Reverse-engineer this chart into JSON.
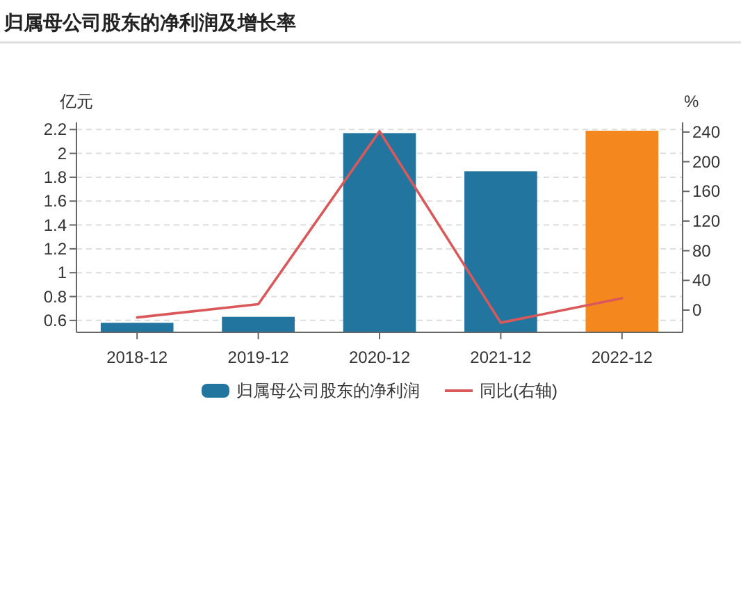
{
  "chart_data": {
    "type": "bar",
    "title": "归属母公司股东的净利润及增长率",
    "ylabel": "亿元",
    "y2label": "%",
    "categories": [
      "2018-12",
      "2019-12",
      "2020-12",
      "2021-12",
      "2022-12"
    ],
    "series": [
      {
        "name": "归属母公司股东的净利润",
        "color": "#21759f",
        "colors": [
          "#21759f",
          "#21759f",
          "#21759f",
          "#21759f",
          "#f5871f"
        ],
        "values": [
          0.58,
          0.63,
          2.17,
          1.85,
          2.19
        ]
      },
      {
        "name": "同比(右轴)",
        "type": "line",
        "axis": "y2",
        "color": "#d9595b",
        "values": [
          -10,
          8,
          241,
          -17,
          16
        ]
      }
    ],
    "ylim": [
      0.5,
      2.26
    ],
    "yticks": [
      0.6,
      0.8,
      1,
      1.2,
      1.4,
      1.6,
      1.8,
      2,
      2.2
    ],
    "y2lim": [
      -30,
      253
    ],
    "y2ticks": [
      0,
      40,
      80,
      120,
      160,
      200,
      240
    ],
    "grid": "y",
    "legend": "bottom"
  }
}
